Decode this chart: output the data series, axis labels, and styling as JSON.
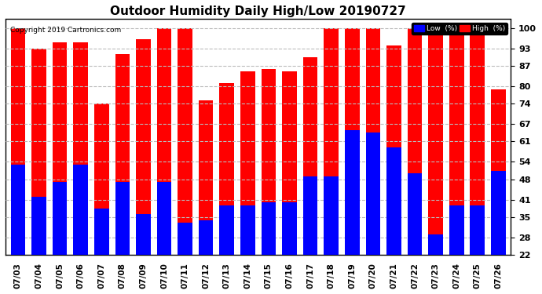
{
  "title": "Outdoor Humidity Daily High/Low 20190727",
  "copyright": "Copyright 2019 Cartronics.com",
  "dates": [
    "07/03",
    "07/04",
    "07/05",
    "07/06",
    "07/07",
    "07/08",
    "07/09",
    "07/10",
    "07/11",
    "07/12",
    "07/13",
    "07/14",
    "07/15",
    "07/16",
    "07/17",
    "07/18",
    "07/19",
    "07/20",
    "07/21",
    "07/22",
    "07/23",
    "07/24",
    "07/25",
    "07/26"
  ],
  "high": [
    100,
    93,
    95,
    95,
    74,
    91,
    96,
    100,
    100,
    75,
    81,
    85,
    86,
    85,
    90,
    100,
    100,
    100,
    94,
    100,
    100,
    100,
    100,
    79
  ],
  "low": [
    53,
    42,
    47,
    53,
    38,
    47,
    36,
    47,
    33,
    34,
    39,
    39,
    40,
    40,
    49,
    49,
    65,
    64,
    59,
    50,
    29,
    39,
    39,
    51
  ],
  "bar_color_high": "#ff0000",
  "bar_color_low": "#0000ff",
  "background_color": "#ffffff",
  "grid_color": "#bbbbbb",
  "title_fontsize": 11,
  "yticks": [
    22,
    28,
    35,
    41,
    48,
    54,
    61,
    67,
    74,
    80,
    87,
    93,
    100
  ],
  "ylim": [
    22,
    103
  ],
  "legend_low_label": "Low  (%)",
  "legend_high_label": "High  (%)"
}
